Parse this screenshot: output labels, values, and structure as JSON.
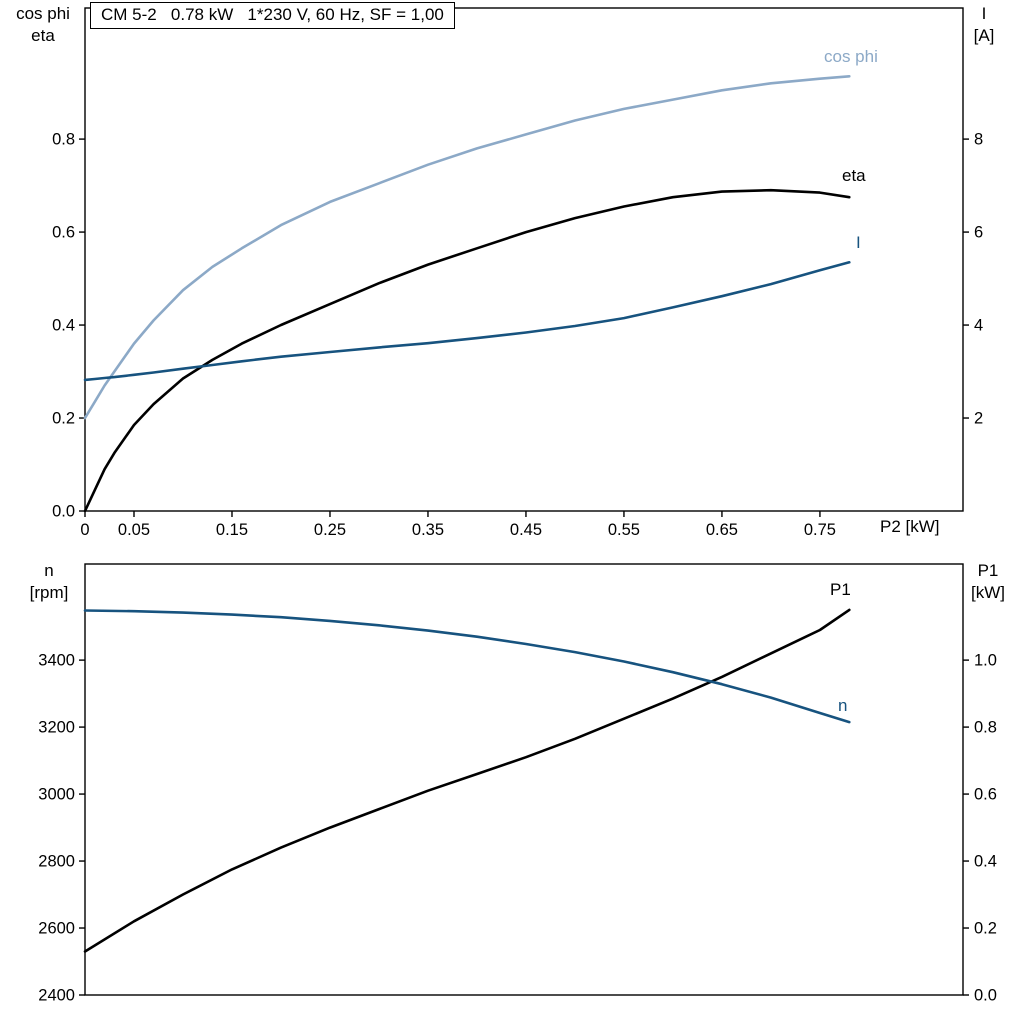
{
  "colors": {
    "background": "#FFFFFF",
    "axis": "#000000",
    "black_curve": "#000000",
    "light_blue_curve": "#8CA9C7",
    "dark_blue_curve": "#17537F"
  },
  "chart_data": [
    {
      "type": "line",
      "title": "CM 5-2   0.78 kW   1*230 V, 60 Hz, SF = 1,00",
      "xlabel": "P2 [kW]",
      "axis_labels": {
        "left": [
          "cos phi",
          "eta"
        ],
        "right": [
          "I",
          "[A]"
        ],
        "x": "P2 [kW]"
      },
      "xlim": [
        0,
        0.896
      ],
      "ylim_left": [
        0,
        1.082
      ],
      "ylim_right": [
        0,
        10.82
      ],
      "grid": false,
      "legend_position": "inline-curve-labels",
      "xticks": [
        {
          "v": 0,
          "t": "0"
        },
        {
          "v": 0.05,
          "t": "0.05"
        },
        {
          "v": 0.15,
          "t": "0.15"
        },
        {
          "v": 0.25,
          "t": "0.25"
        },
        {
          "v": 0.35,
          "t": "0.35"
        },
        {
          "v": 0.45,
          "t": "0.45"
        },
        {
          "v": 0.55,
          "t": "0.55"
        },
        {
          "v": 0.65,
          "t": "0.65"
        },
        {
          "v": 0.75,
          "t": "0.75"
        }
      ],
      "yticks_left": [
        {
          "v": 0.0,
          "t": "0.0"
        },
        {
          "v": 0.2,
          "t": "0.2"
        },
        {
          "v": 0.4,
          "t": "0.4"
        },
        {
          "v": 0.6,
          "t": "0.6"
        },
        {
          "v": 0.8,
          "t": "0.8"
        }
      ],
      "yticks_right": [
        {
          "v": 2,
          "t": "2"
        },
        {
          "v": 4,
          "t": "4"
        },
        {
          "v": 6,
          "t": "6"
        },
        {
          "v": 8,
          "t": "8"
        }
      ],
      "x": [
        0,
        0.01,
        0.02,
        0.03,
        0.05,
        0.07,
        0.1,
        0.13,
        0.16,
        0.2,
        0.25,
        0.3,
        0.35,
        0.4,
        0.45,
        0.5,
        0.55,
        0.6,
        0.65,
        0.7,
        0.75,
        0.78
      ],
      "series": [
        {
          "name": "cos phi",
          "axis": "left",
          "color": "#8CA9C7",
          "values": [
            0.2,
            0.235,
            0.27,
            0.3,
            0.36,
            0.41,
            0.475,
            0.525,
            0.565,
            0.615,
            0.665,
            0.705,
            0.745,
            0.78,
            0.81,
            0.84,
            0.865,
            0.885,
            0.905,
            0.92,
            0.93,
            0.935
          ]
        },
        {
          "name": "eta",
          "axis": "left",
          "color": "#000000",
          "values": [
            0.0,
            0.045,
            0.09,
            0.125,
            0.185,
            0.23,
            0.285,
            0.325,
            0.36,
            0.4,
            0.445,
            0.49,
            0.53,
            0.565,
            0.6,
            0.63,
            0.655,
            0.675,
            0.687,
            0.69,
            0.685,
            0.675
          ]
        },
        {
          "name": "I",
          "axis": "right",
          "color": "#17537F",
          "values": [
            2.82,
            2.84,
            2.86,
            2.88,
            2.93,
            2.98,
            3.06,
            3.14,
            3.22,
            3.32,
            3.42,
            3.52,
            3.61,
            3.72,
            3.84,
            3.98,
            4.15,
            4.38,
            4.62,
            4.88,
            5.18,
            5.35
          ]
        }
      ]
    },
    {
      "type": "line",
      "title": "",
      "xlabel": "",
      "axis_labels": {
        "left": [
          "n",
          "[rpm]"
        ],
        "right": [
          "P1",
          "[kW]"
        ]
      },
      "xlim": [
        0,
        0.896
      ],
      "ylim_left": [
        2400,
        3687
      ],
      "ylim_right": [
        0,
        1.287
      ],
      "grid": false,
      "legend_position": "inline-curve-labels",
      "xticks": [],
      "yticks_left": [
        {
          "v": 2400,
          "t": "2400"
        },
        {
          "v": 2600,
          "t": "2600"
        },
        {
          "v": 2800,
          "t": "2800"
        },
        {
          "v": 3000,
          "t": "3000"
        },
        {
          "v": 3200,
          "t": "3200"
        },
        {
          "v": 3400,
          "t": "3400"
        }
      ],
      "yticks_right": [
        {
          "v": 0.0,
          "t": "0.0"
        },
        {
          "v": 0.2,
          "t": "0.2"
        },
        {
          "v": 0.4,
          "t": "0.4"
        },
        {
          "v": 0.6,
          "t": "0.6"
        },
        {
          "v": 0.8,
          "t": "0.8"
        },
        {
          "v": 1.0,
          "t": "1.0"
        }
      ],
      "x": [
        0,
        0.05,
        0.1,
        0.15,
        0.2,
        0.25,
        0.3,
        0.35,
        0.4,
        0.45,
        0.5,
        0.55,
        0.6,
        0.65,
        0.7,
        0.75,
        0.78
      ],
      "series": [
        {
          "name": "P1",
          "axis": "right",
          "color": "#000000",
          "values": [
            0.13,
            0.22,
            0.3,
            0.375,
            0.44,
            0.5,
            0.555,
            0.61,
            0.66,
            0.71,
            0.765,
            0.825,
            0.885,
            0.95,
            1.02,
            1.09,
            1.15
          ]
        },
        {
          "name": "n",
          "axis": "left",
          "color": "#17537F",
          "values": [
            3548,
            3546,
            3542,
            3536,
            3528,
            3517,
            3504,
            3488,
            3470,
            3448,
            3424,
            3396,
            3364,
            3328,
            3288,
            3242,
            3215
          ]
        }
      ]
    }
  ]
}
